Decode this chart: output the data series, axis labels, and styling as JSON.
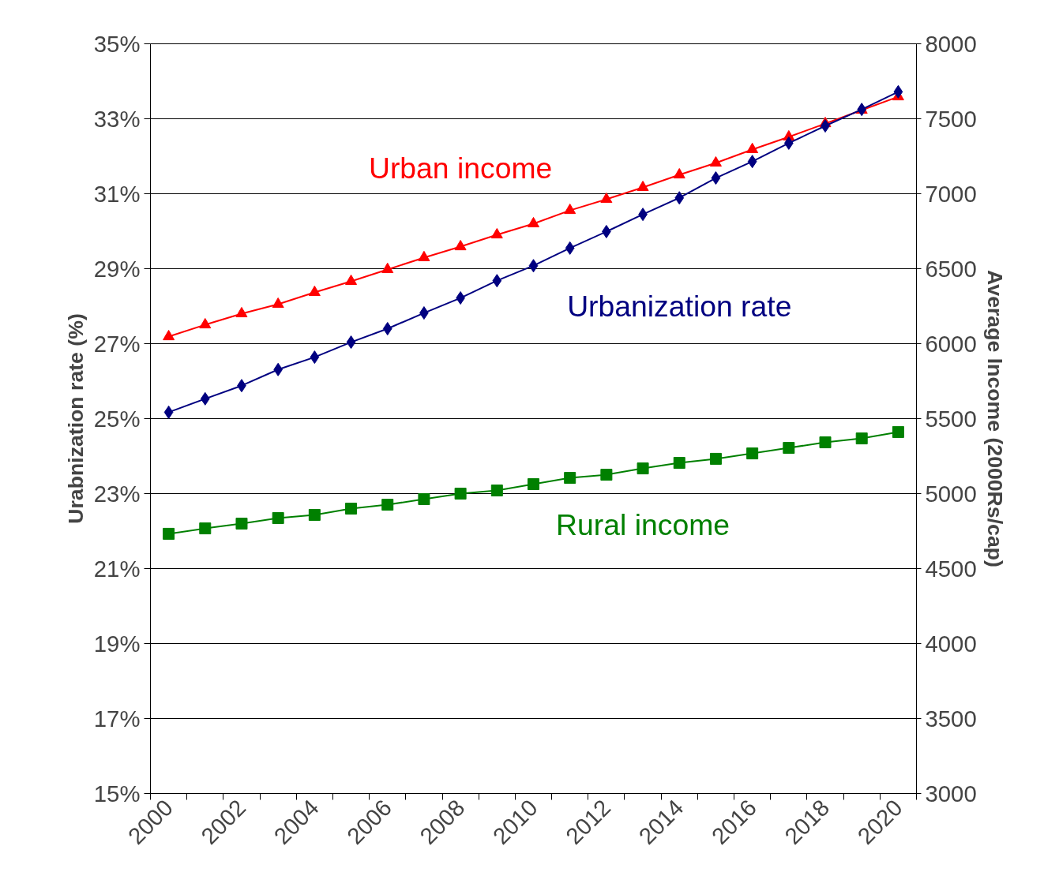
{
  "chart_data": {
    "type": "line",
    "ylabel": "Urabnization rate (%)",
    "y2label": "Average Income (2000Rs/cap)",
    "categories": [
      "2000",
      null,
      "2002",
      null,
      "2004",
      null,
      "2006",
      null,
      "2008",
      null,
      "2010",
      null,
      "2012",
      null,
      "2014",
      null,
      "2016",
      null,
      "2018",
      null,
      "2020"
    ],
    "ylim": [
      15,
      35
    ],
    "yticks": [
      {
        "value": 15,
        "label": "15%"
      },
      {
        "value": 17,
        "label": "17%"
      },
      {
        "value": 19,
        "label": "19%"
      },
      {
        "value": 21,
        "label": "21%"
      },
      {
        "value": 23,
        "label": "23%"
      },
      {
        "value": 25,
        "label": "25%"
      },
      {
        "value": 27,
        "label": "27%"
      },
      {
        "value": 29,
        "label": "29%"
      },
      {
        "value": 31,
        "label": "31%"
      },
      {
        "value": 33,
        "label": "33%"
      },
      {
        "value": 35,
        "label": "35%"
      }
    ],
    "y2lim": [
      3000,
      8000
    ],
    "y2ticks": [
      3000,
      3500,
      4000,
      4500,
      5000,
      5500,
      6000,
      6500,
      7000,
      7500,
      8000
    ],
    "grid": "y",
    "series": [
      {
        "name": "Urbanization rate",
        "color": "#000080",
        "marker": "diamond",
        "values": [
          25.17,
          25.53,
          25.88,
          26.31,
          26.64,
          27.04,
          27.4,
          27.82,
          28.22,
          28.68,
          29.08,
          29.55,
          29.99,
          30.45,
          30.89,
          31.42,
          31.86,
          32.35,
          32.81,
          33.25,
          33.72
        ]
      },
      {
        "name": "Urban income",
        "color": "#ff0000",
        "marker": "triangle",
        "axis": "y2",
        "values": [
          6047,
          6126,
          6200,
          6263,
          6342,
          6416,
          6495,
          6574,
          6647,
          6726,
          6800,
          6889,
          6963,
          7042,
          7126,
          7205,
          7295,
          7379,
          7468,
          7558,
          7647
        ]
      },
      {
        "name": "Rural income",
        "color": "#008000",
        "marker": "square",
        "axis": "y2",
        "values": [
          4732,
          4768,
          4800,
          4837,
          4858,
          4900,
          4926,
          4963,
          5000,
          5021,
          5063,
          5105,
          5126,
          5168,
          5205,
          5232,
          5268,
          5305,
          5342,
          5368,
          5411
        ]
      }
    ]
  }
}
